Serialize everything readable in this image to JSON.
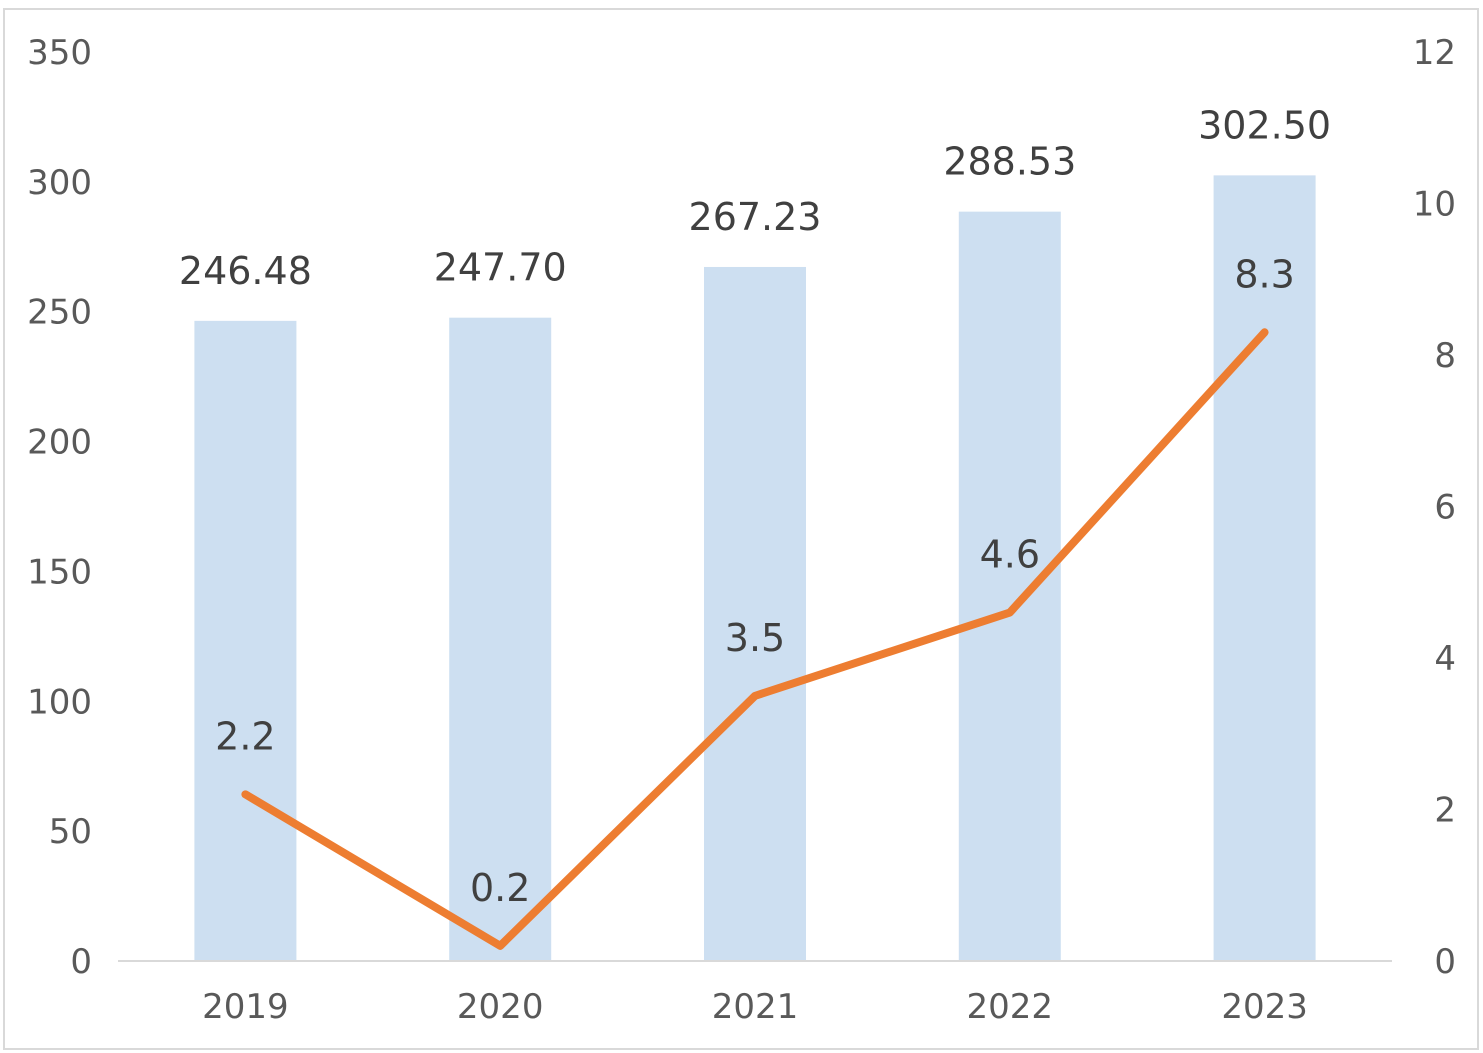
{
  "chart_data": {
    "type": "bar",
    "categories": [
      "2019",
      "2020",
      "2021",
      "2022",
      "2023"
    ],
    "series": [
      {
        "type": "bar",
        "axis": "left",
        "color": "#cddff1",
        "values": [
          246.48,
          247.7,
          267.23,
          288.53,
          302.5
        ],
        "labels": [
          "246.48",
          "247.70",
          "267.23",
          "288.53",
          "302.50"
        ]
      },
      {
        "type": "line",
        "axis": "right",
        "color": "#ed7d31",
        "values": [
          2.2,
          0.2,
          3.5,
          4.6,
          8.3
        ],
        "labels": [
          "2.2",
          "0.2",
          "3.5",
          "4.6",
          "8.3"
        ]
      }
    ],
    "y_left": {
      "min": 0,
      "max": 350,
      "ticks": [
        "0",
        "50",
        "100",
        "150",
        "200",
        "250",
        "300",
        "350"
      ]
    },
    "y_right": {
      "min": 0,
      "max": 12,
      "ticks": [
        "0",
        "2",
        "4",
        "6",
        "8",
        "10",
        "12"
      ]
    },
    "legend": "none",
    "grid": false
  }
}
